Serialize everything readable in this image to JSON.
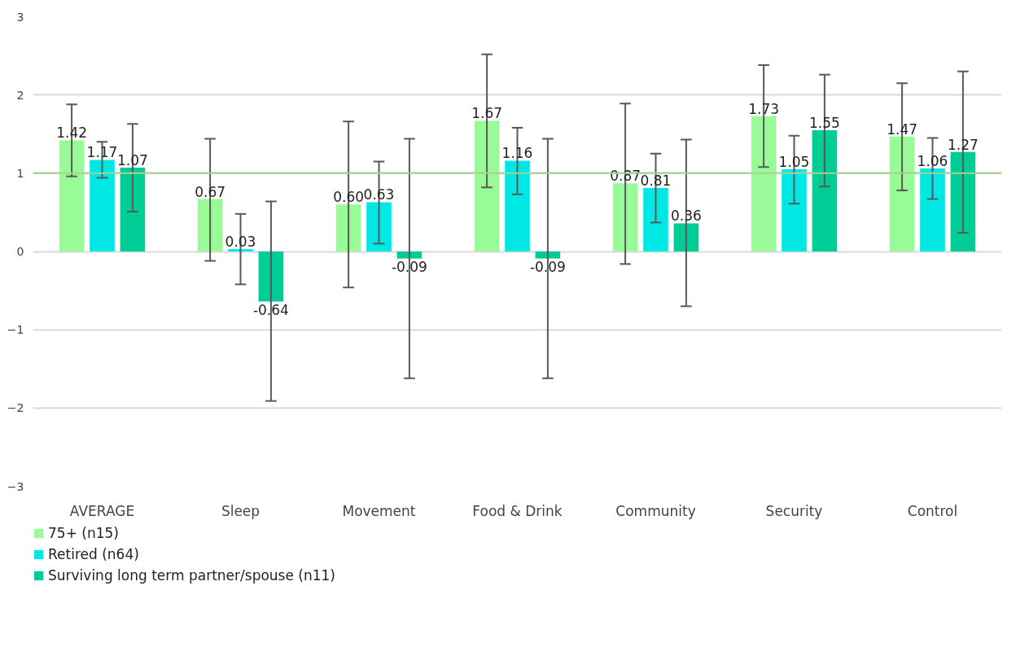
{
  "chart_data": {
    "type": "bar",
    "categories": [
      "AVERAGE",
      "Sleep",
      "Movement",
      "Food & Drink",
      "Community",
      "Security",
      "Control"
    ],
    "series": [
      {
        "name": "75+ (n15)",
        "color": "#98fb98",
        "values": [
          1.42,
          0.67,
          0.6,
          1.67,
          0.87,
          1.73,
          1.47
        ],
        "value_labels": [
          "1.42",
          "0.67",
          "0.60",
          "1.67",
          "0.87",
          "1.73",
          "1.47"
        ],
        "errors": [
          [
            0.96,
            1.88
          ],
          [
            -0.12,
            1.44
          ],
          [
            -0.46,
            1.66
          ],
          [
            0.82,
            2.52
          ],
          [
            -0.16,
            1.89
          ],
          [
            1.08,
            2.38
          ],
          [
            0.78,
            2.15
          ]
        ]
      },
      {
        "name": "Retired (n64)",
        "color": "#00e8e4",
        "values": [
          1.17,
          0.03,
          0.63,
          1.16,
          0.81,
          1.05,
          1.06
        ],
        "value_labels": [
          "1.17",
          "0.03",
          "0.63",
          "1.16",
          "0.81",
          "1.05",
          "1.06"
        ],
        "errors": [
          [
            0.94,
            1.4
          ],
          [
            -0.42,
            0.48
          ],
          [
            0.1,
            1.15
          ],
          [
            0.73,
            1.58
          ],
          [
            0.37,
            1.25
          ],
          [
            0.61,
            1.48
          ],
          [
            0.67,
            1.45
          ]
        ]
      },
      {
        "name": "Surviving long term partner/spouse (n11)",
        "color": "#00cc96",
        "values": [
          1.07,
          -0.64,
          -0.09,
          -0.09,
          0.36,
          1.55,
          1.27
        ],
        "value_labels": [
          "1.07",
          "-0.64",
          "-0.09",
          "-0.09",
          "0.36",
          "1.55",
          "1.27"
        ],
        "errors": [
          [
            0.51,
            1.63
          ],
          [
            -1.91,
            0.64
          ],
          [
            -1.62,
            1.44
          ],
          [
            -1.62,
            1.44
          ],
          [
            -0.7,
            1.43
          ],
          [
            0.83,
            2.26
          ],
          [
            0.24,
            2.3
          ]
        ]
      }
    ],
    "ylim": [
      -3,
      3
    ],
    "yticks": [
      -3,
      -2,
      -1,
      0,
      1,
      2,
      3
    ],
    "ref_lines": [
      {
        "axis": "y",
        "value": 1,
        "color": "#a9d18e"
      }
    ],
    "grid": "y",
    "legend": "bottom"
  }
}
